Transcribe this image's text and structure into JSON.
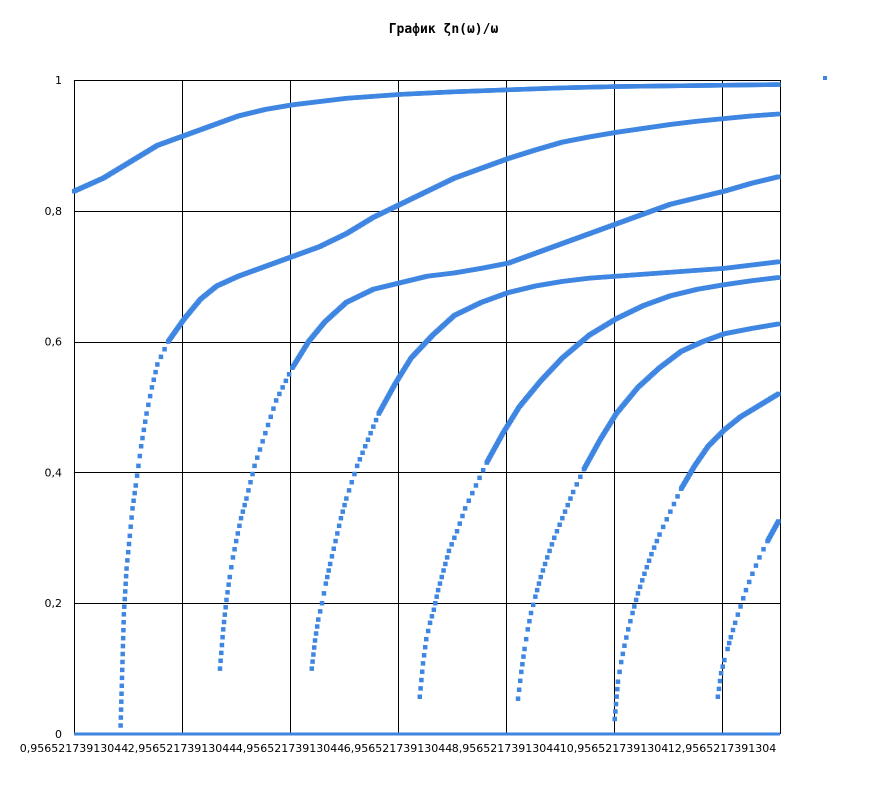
{
  "chart_data": {
    "type": "scatter",
    "title": "График ζn(ω)/ω",
    "xlabel": "",
    "ylabel": "",
    "xlim": [
      0.95652173913044,
      14.0
    ],
    "ylim": [
      0,
      1
    ],
    "grid": true,
    "legend": "top-right",
    "color": "#3e86e1",
    "x_tick_labels": [
      "0,95652173913044",
      "2,95652173913044",
      "4,95652173913044",
      "6,95652173913044",
      "8,95652173913044",
      "10,9565217391304",
      "12,9565217391304"
    ],
    "x_ticks": [
      0.95652173913044,
      2.95652173913044,
      4.95652173913044,
      6.95652173913044,
      8.95652173913044,
      10.9565217391304,
      12.9565217391304
    ],
    "y_tick_labels": [
      "0",
      "0,2",
      "0,4",
      "0,6",
      "0,8",
      "1"
    ],
    "y_ticks": [
      0,
      0.2,
      0.4,
      0.6,
      0.8,
      1
    ],
    "series": [
      {
        "points": [
          [
            0.96,
            0.83
          ],
          [
            1.5,
            0.85
          ],
          [
            2.0,
            0.875
          ],
          [
            2.5,
            0.9
          ],
          [
            3.0,
            0.915
          ],
          [
            3.5,
            0.93
          ],
          [
            4.0,
            0.945
          ],
          [
            4.5,
            0.955
          ],
          [
            5.0,
            0.962
          ],
          [
            6.0,
            0.972
          ],
          [
            7.0,
            0.978
          ],
          [
            8.0,
            0.982
          ],
          [
            9.0,
            0.985
          ],
          [
            10.0,
            0.988
          ],
          [
            11.0,
            0.99
          ],
          [
            12.0,
            0.991
          ],
          [
            13.0,
            0.992
          ],
          [
            14.0,
            0.993
          ]
        ]
      },
      {
        "points": [
          [
            1.82,
            0.013
          ],
          [
            1.88,
            0.183
          ],
          [
            1.93,
            0.253
          ],
          [
            1.99,
            0.303
          ],
          [
            2.04,
            0.345
          ],
          [
            2.1,
            0.38
          ],
          [
            2.15,
            0.41
          ],
          [
            2.2,
            0.44
          ],
          [
            2.3,
            0.49
          ],
          [
            2.4,
            0.53
          ],
          [
            2.5,
            0.565
          ],
          [
            2.7,
            0.6
          ],
          [
            3.0,
            0.635
          ],
          [
            3.3,
            0.665
          ],
          [
            3.6,
            0.685
          ],
          [
            4.0,
            0.7
          ],
          [
            4.5,
            0.715
          ],
          [
            5.0,
            0.73
          ],
          [
            5.5,
            0.745
          ],
          [
            6.0,
            0.765
          ],
          [
            6.5,
            0.79
          ],
          [
            7.0,
            0.81
          ],
          [
            7.5,
            0.83
          ],
          [
            8.0,
            0.85
          ],
          [
            8.5,
            0.865
          ],
          [
            9.0,
            0.88
          ],
          [
            9.5,
            0.893
          ],
          [
            10.0,
            0.905
          ],
          [
            10.5,
            0.913
          ],
          [
            11.0,
            0.92
          ],
          [
            11.5,
            0.926
          ],
          [
            12.0,
            0.932
          ],
          [
            12.5,
            0.937
          ],
          [
            13.0,
            0.941
          ],
          [
            13.5,
            0.945
          ],
          [
            14.0,
            0.948
          ]
        ]
      },
      {
        "points": [
          [
            3.66,
            0.1
          ],
          [
            3.72,
            0.16
          ],
          [
            3.78,
            0.205
          ],
          [
            3.84,
            0.24
          ],
          [
            3.9,
            0.27
          ],
          [
            3.96,
            0.295
          ],
          [
            4.05,
            0.33
          ],
          [
            4.15,
            0.36
          ],
          [
            4.3,
            0.41
          ],
          [
            4.5,
            0.46
          ],
          [
            4.7,
            0.51
          ],
          [
            5.0,
            0.56
          ],
          [
            5.3,
            0.6
          ],
          [
            5.6,
            0.63
          ],
          [
            6.0,
            0.66
          ],
          [
            6.5,
            0.68
          ],
          [
            7.0,
            0.69
          ],
          [
            7.5,
            0.7
          ],
          [
            8.0,
            0.705
          ],
          [
            8.5,
            0.712
          ],
          [
            9.0,
            0.72
          ],
          [
            9.5,
            0.735
          ],
          [
            10.0,
            0.75
          ],
          [
            10.5,
            0.765
          ],
          [
            11.0,
            0.78
          ],
          [
            11.5,
            0.795
          ],
          [
            12.0,
            0.81
          ],
          [
            12.5,
            0.82
          ],
          [
            13.0,
            0.83
          ],
          [
            13.5,
            0.842
          ],
          [
            14.0,
            0.852
          ]
        ]
      },
      {
        "points": [
          [
            5.36,
            0.1
          ],
          [
            5.42,
            0.143
          ],
          [
            5.48,
            0.175
          ],
          [
            5.55,
            0.2
          ],
          [
            5.62,
            0.23
          ],
          [
            5.7,
            0.26
          ],
          [
            5.8,
            0.295
          ],
          [
            5.9,
            0.33
          ],
          [
            6.0,
            0.36
          ],
          [
            6.2,
            0.41
          ],
          [
            6.4,
            0.45
          ],
          [
            6.6,
            0.49
          ],
          [
            6.9,
            0.535
          ],
          [
            7.2,
            0.575
          ],
          [
            7.6,
            0.61
          ],
          [
            8.0,
            0.64
          ],
          [
            8.5,
            0.66
          ],
          [
            9.0,
            0.675
          ],
          [
            9.5,
            0.685
          ],
          [
            10.0,
            0.692
          ],
          [
            10.5,
            0.697
          ],
          [
            11.0,
            0.7
          ],
          [
            11.5,
            0.703
          ],
          [
            12.0,
            0.706
          ],
          [
            12.5,
            0.709
          ],
          [
            13.0,
            0.712
          ],
          [
            13.5,
            0.717
          ],
          [
            14.0,
            0.722
          ]
        ]
      },
      {
        "points": [
          [
            7.36,
            0.057
          ],
          [
            7.42,
            0.108
          ],
          [
            7.48,
            0.145
          ],
          [
            7.55,
            0.17
          ],
          [
            7.62,
            0.19
          ],
          [
            7.7,
            0.22
          ],
          [
            7.8,
            0.25
          ],
          [
            7.9,
            0.28
          ],
          [
            8.05,
            0.31
          ],
          [
            8.2,
            0.345
          ],
          [
            8.4,
            0.38
          ],
          [
            8.6,
            0.415
          ],
          [
            8.9,
            0.46
          ],
          [
            9.2,
            0.5
          ],
          [
            9.6,
            0.54
          ],
          [
            10.0,
            0.575
          ],
          [
            10.5,
            0.61
          ],
          [
            11.0,
            0.635
          ],
          [
            11.5,
            0.655
          ],
          [
            12.0,
            0.67
          ],
          [
            12.5,
            0.68
          ],
          [
            13.0,
            0.687
          ],
          [
            13.5,
            0.693
          ],
          [
            14.0,
            0.698
          ]
        ]
      },
      {
        "points": [
          [
            9.18,
            0.054
          ],
          [
            9.24,
            0.095
          ],
          [
            9.3,
            0.13
          ],
          [
            9.36,
            0.16
          ],
          [
            9.42,
            0.185
          ],
          [
            9.5,
            0.21
          ],
          [
            9.6,
            0.24
          ],
          [
            9.72,
            0.27
          ],
          [
            9.85,
            0.3
          ],
          [
            10.0,
            0.33
          ],
          [
            10.2,
            0.37
          ],
          [
            10.4,
            0.405
          ],
          [
            10.7,
            0.45
          ],
          [
            11.0,
            0.49
          ],
          [
            11.4,
            0.53
          ],
          [
            11.8,
            0.56
          ],
          [
            12.2,
            0.585
          ],
          [
            12.6,
            0.6
          ],
          [
            13.0,
            0.612
          ],
          [
            13.5,
            0.62
          ],
          [
            14.0,
            0.627
          ]
        ]
      },
      {
        "points": [
          [
            10.97,
            0.023
          ],
          [
            11.03,
            0.08
          ],
          [
            11.09,
            0.11
          ],
          [
            11.15,
            0.135
          ],
          [
            11.22,
            0.16
          ],
          [
            11.3,
            0.185
          ],
          [
            11.4,
            0.215
          ],
          [
            11.52,
            0.245
          ],
          [
            11.65,
            0.275
          ],
          [
            11.8,
            0.305
          ],
          [
            12.0,
            0.34
          ],
          [
            12.2,
            0.375
          ],
          [
            12.45,
            0.41
          ],
          [
            12.7,
            0.44
          ],
          [
            13.0,
            0.465
          ],
          [
            13.3,
            0.485
          ],
          [
            13.6,
            0.5
          ],
          [
            14.0,
            0.52
          ]
        ]
      },
      {
        "points": [
          [
            12.88,
            0.057
          ],
          [
            12.94,
            0.093
          ],
          [
            13.0,
            0.113
          ],
          [
            13.06,
            0.13
          ],
          [
            13.12,
            0.148
          ],
          [
            13.2,
            0.17
          ],
          [
            13.3,
            0.195
          ],
          [
            13.4,
            0.22
          ],
          [
            13.52,
            0.245
          ],
          [
            13.65,
            0.27
          ],
          [
            13.8,
            0.295
          ],
          [
            14.0,
            0.325
          ]
        ]
      }
    ]
  }
}
